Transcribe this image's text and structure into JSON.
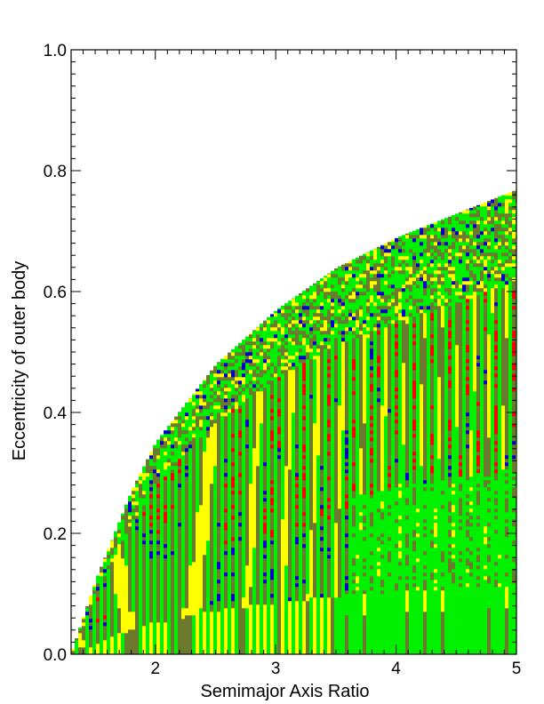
{
  "chart_data": {
    "type": "heatmap",
    "title": "",
    "xlabel": "Semimajor Axis Ratio",
    "ylabel": "Eccentricity of outer body",
    "xlim": [
      1.3,
      5.0
    ],
    "ylim": [
      0.0,
      1.0
    ],
    "x_ticks": [
      2,
      3,
      4,
      5
    ],
    "x_tick_labels": [
      "2",
      "3",
      "4",
      "5"
    ],
    "y_ticks": [
      0.0,
      0.2,
      0.4,
      0.6,
      0.8,
      1.0
    ],
    "y_tick_labels": [
      "0.0",
      "0.2",
      "0.4",
      "0.6",
      "0.8",
      "1.0"
    ],
    "x_minor_step": 0.1,
    "y_minor_step": 0.02,
    "grid": false,
    "legend": "none",
    "boundary_curve": {
      "description": "upper edge of colored region (stability limit)",
      "x": [
        1.3,
        1.5,
        1.8,
        2.0,
        2.5,
        3.0,
        3.5,
        4.0,
        4.5,
        5.0
      ],
      "y": [
        0.0,
        0.12,
        0.27,
        0.35,
        0.48,
        0.57,
        0.64,
        0.69,
        0.73,
        0.77
      ]
    },
    "colors": {
      "green": "#00f000",
      "yellow": "#ffff00",
      "red": "#ff0000",
      "blue": "#0000c8",
      "olive": "#6b7a2c"
    }
  }
}
